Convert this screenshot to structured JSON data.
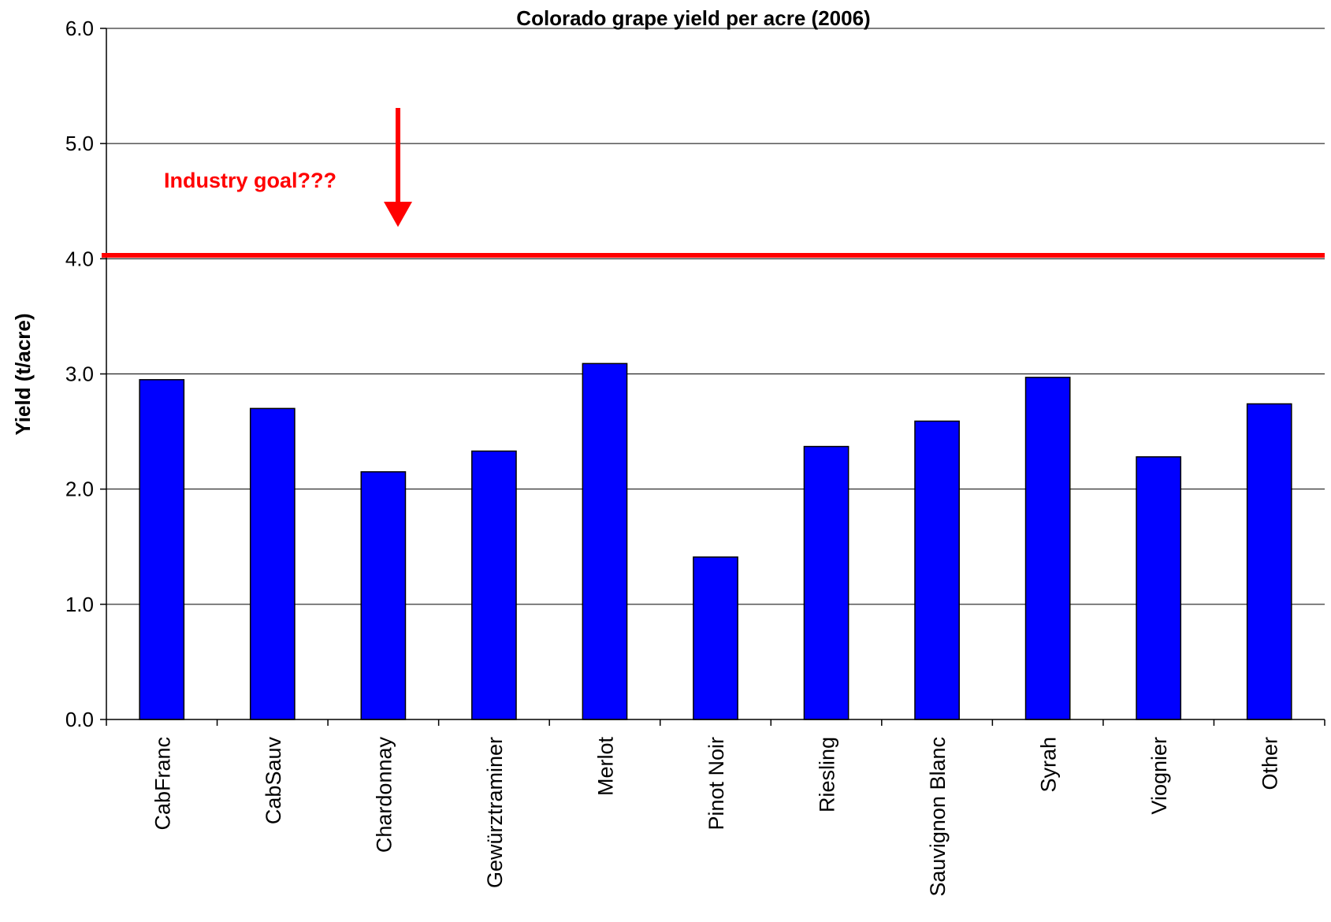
{
  "chart_data": {
    "type": "bar",
    "title": "Colorado grape yield per acre (2006)",
    "xlabel": "",
    "ylabel": "Yield (t/acre)",
    "categories": [
      "CabFranc",
      "CabSauv",
      "Chardonnay",
      "Gewürztraminer",
      "Merlot",
      "Pinot Noir",
      "Riesling",
      "Sauvignon Blanc",
      "Syrah",
      "Viognier",
      "Other"
    ],
    "values": [
      2.95,
      2.7,
      2.15,
      2.33,
      3.09,
      1.41,
      2.37,
      2.59,
      2.97,
      2.28,
      2.74
    ],
    "ylim": [
      0,
      6
    ],
    "yticks": [
      "0.0",
      "1.0",
      "2.0",
      "3.0",
      "4.0",
      "5.0",
      "6.0"
    ],
    "grid": true,
    "bar_color": "#0000ff",
    "reference_line": {
      "value": 4.03,
      "color": "#ff0000"
    },
    "annotation": {
      "text": "Industry goal???",
      "color": "#ff0000"
    }
  }
}
